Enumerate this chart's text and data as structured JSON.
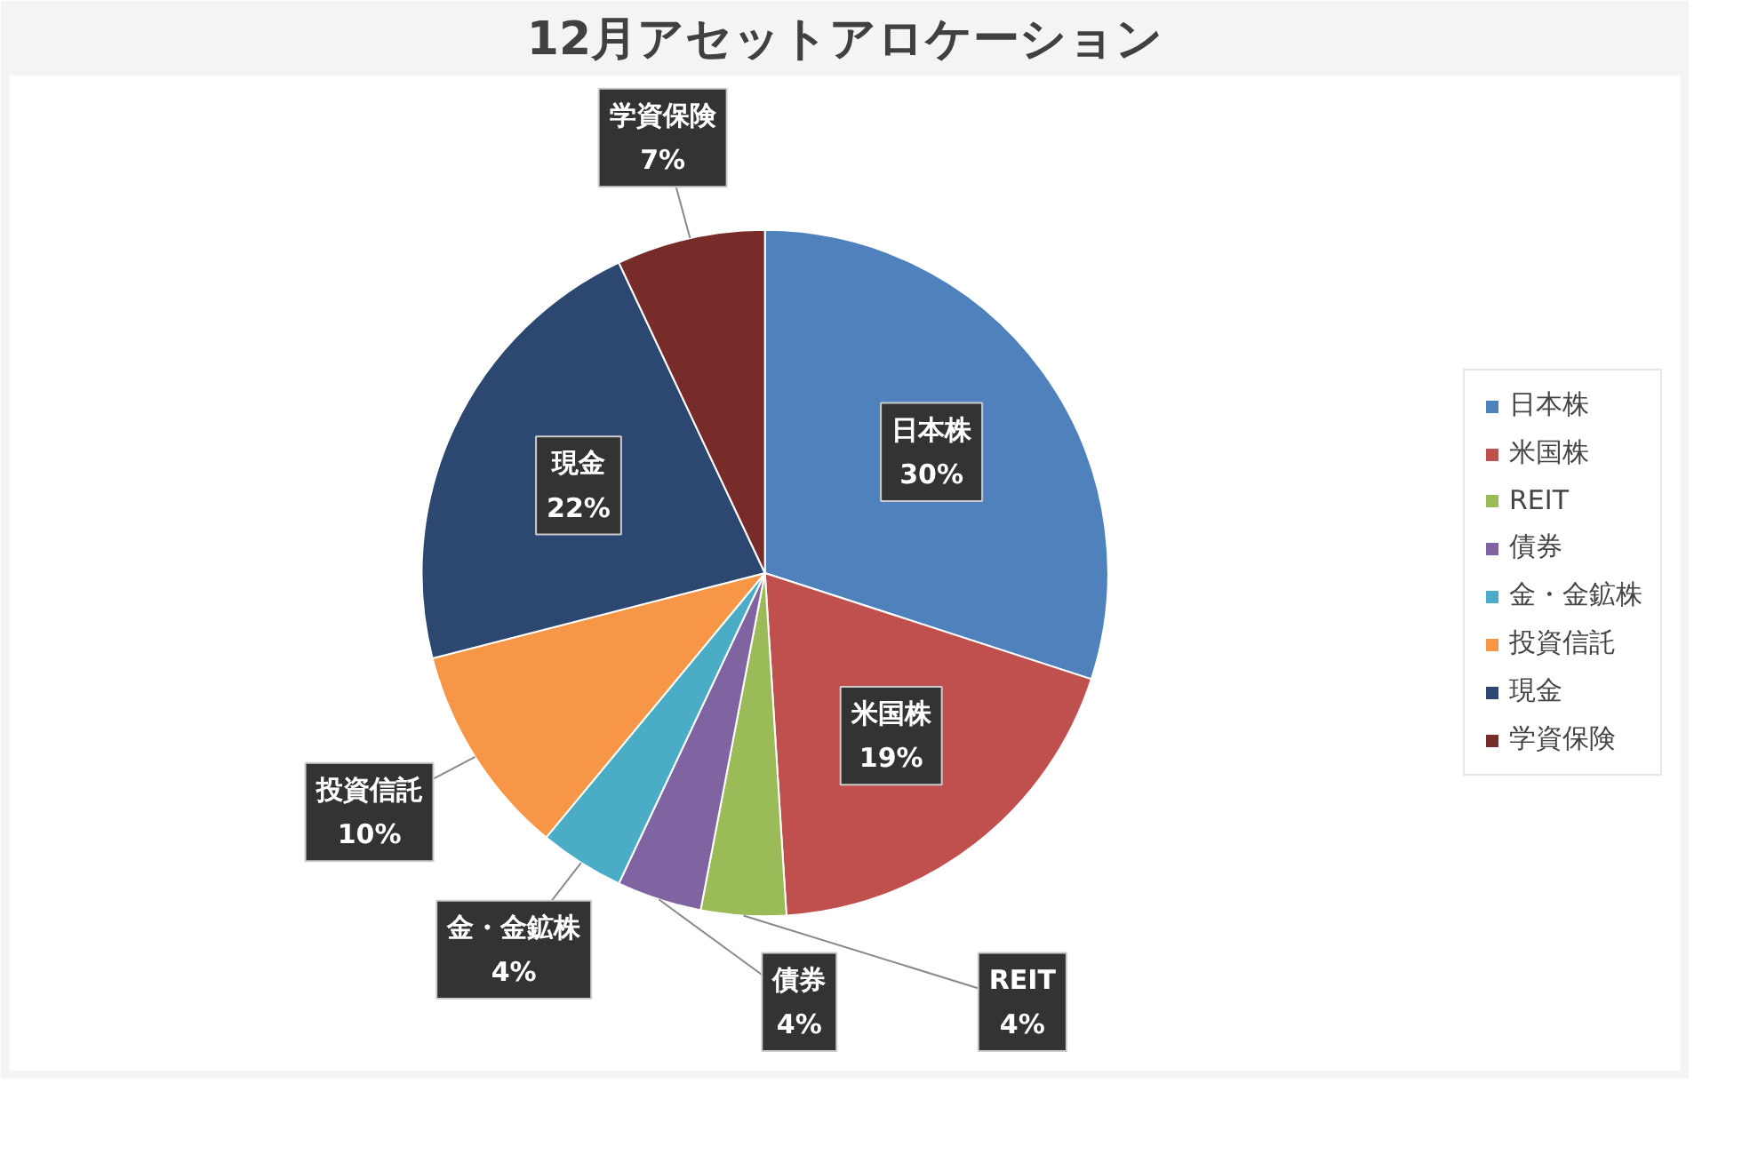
{
  "chart_data": {
    "type": "pie",
    "title": "12月アセットアロケーション",
    "categories": [
      "日本株",
      "米国株",
      "REIT",
      "債券",
      "金・金鉱株",
      "投資信託",
      "現金",
      "学資保険"
    ],
    "values": [
      30,
      19,
      4,
      4,
      4,
      10,
      22,
      7
    ],
    "value_labels": [
      "30%",
      "19%",
      "4%",
      "4%",
      "4%",
      "10%",
      "22%",
      "7%"
    ],
    "colors": [
      "#4f81bd",
      "#c0504d",
      "#9bbb59",
      "#8064a2",
      "#4bacc6",
      "#f79646",
      "#2c4770",
      "#772c2a"
    ],
    "legend": "right"
  }
}
